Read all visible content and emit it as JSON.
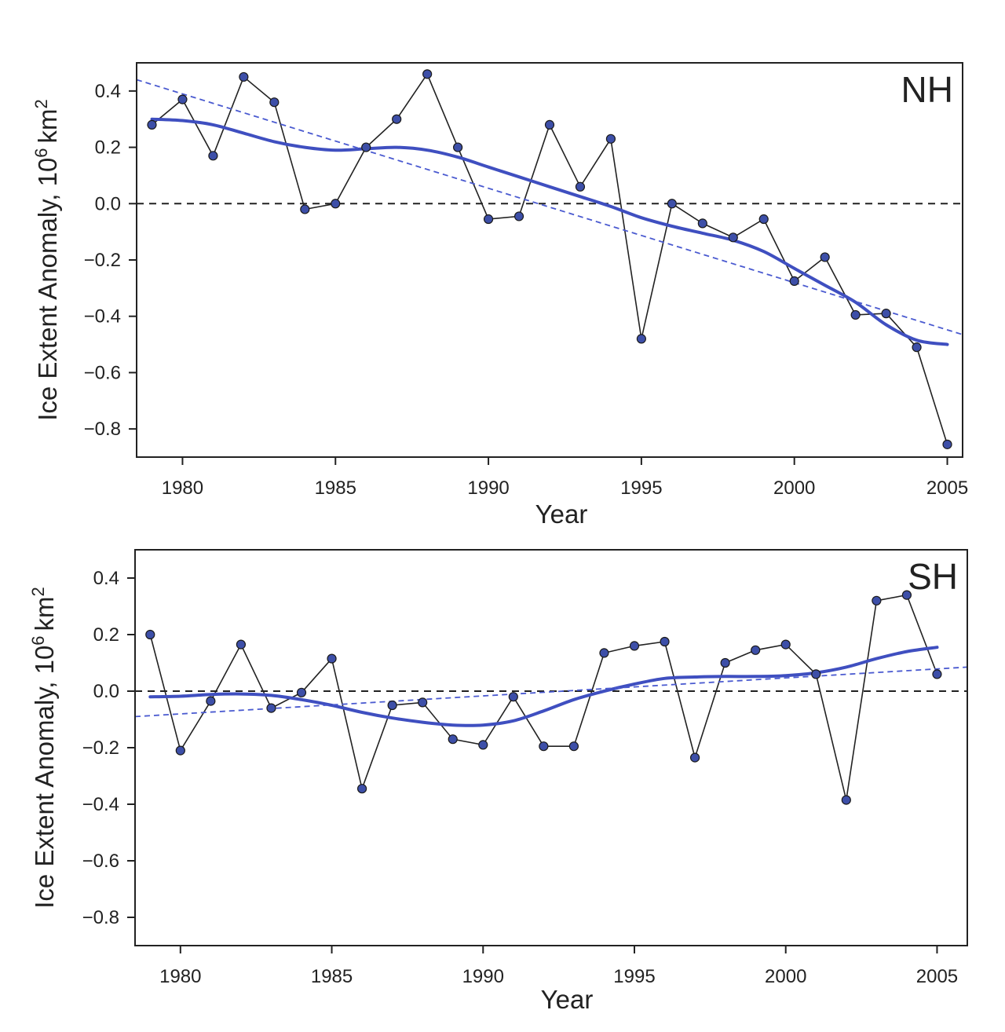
{
  "chart_data": [
    {
      "type": "line",
      "panel_label": "NH",
      "xlabel": "Year",
      "ylabel": "Ice Extent Anomaly, 10",
      "ylabel_exponent": "6",
      "ylabel_unit": "km",
      "ylabel_unit_exponent": "2",
      "xlim": [
        1978.5,
        2005.5
      ],
      "ylim": [
        -0.9,
        0.5
      ],
      "xticks": [
        1980,
        1985,
        1990,
        1995,
        2000,
        2005
      ],
      "yticks": [
        0.4,
        0.2,
        0.0,
        -0.2,
        -0.4,
        -0.6,
        -0.8
      ],
      "ytick_labels": [
        "0.4",
        "0.2",
        "0.0",
        "−0.2",
        "−0.4",
        "−0.6",
        "−0.8"
      ],
      "zero_line": true,
      "grid": false,
      "series": [
        {
          "style": "markers-line",
          "color": "#222222",
          "marker_color": "#3d4fa8",
          "x": [
            1979,
            1980,
            1981,
            1982,
            1983,
            1984,
            1985,
            1986,
            1987,
            1988,
            1989,
            1990,
            1991,
            1992,
            1993,
            1994,
            1995,
            1996,
            1997,
            1998,
            1999,
            2000,
            2001,
            2002,
            2003,
            2004,
            2005
          ],
          "y": [
            0.28,
            0.37,
            0.17,
            0.45,
            0.36,
            -0.02,
            0.0,
            0.2,
            0.3,
            0.46,
            0.2,
            -0.055,
            -0.045,
            0.28,
            0.06,
            0.23,
            -0.48,
            0.0,
            -0.07,
            -0.12,
            -0.055,
            -0.275,
            -0.19,
            -0.395,
            -0.39,
            -0.51,
            -0.855
          ]
        },
        {
          "style": "smooth",
          "color": "#3f4fc0",
          "x": [
            1979,
            1980,
            1981,
            1982,
            1983,
            1984,
            1985,
            1986,
            1987,
            1988,
            1989,
            1990,
            1991,
            1992,
            1993,
            1994,
            1995,
            1996,
            1997,
            1998,
            1999,
            2000,
            2001,
            2002,
            2003,
            2004,
            2005
          ],
          "y": [
            0.3,
            0.295,
            0.28,
            0.25,
            0.22,
            0.2,
            0.19,
            0.195,
            0.2,
            0.19,
            0.165,
            0.13,
            0.095,
            0.06,
            0.025,
            -0.01,
            -0.05,
            -0.08,
            -0.105,
            -0.13,
            -0.17,
            -0.23,
            -0.29,
            -0.35,
            -0.43,
            -0.485,
            -0.5
          ]
        },
        {
          "style": "dashed",
          "color": "#4a5ad0",
          "x": [
            1978.5,
            2005.5
          ],
          "y": [
            0.44,
            -0.465
          ]
        }
      ]
    },
    {
      "type": "line",
      "panel_label": "SH",
      "xlabel": "Year",
      "ylabel": "Ice Extent Anomaly, 10",
      "ylabel_exponent": "6",
      "ylabel_unit": "km",
      "ylabel_unit_exponent": "2",
      "xlim": [
        1978.5,
        2006.0
      ],
      "ylim": [
        -0.9,
        0.5
      ],
      "xticks": [
        1980,
        1985,
        1990,
        1995,
        2000,
        2005
      ],
      "yticks": [
        0.4,
        0.2,
        0.0,
        -0.2,
        -0.4,
        -0.6,
        -0.8
      ],
      "ytick_labels": [
        "0.4",
        "0.2",
        "0.0",
        "−0.2",
        "−0.4",
        "−0.6",
        "−0.8"
      ],
      "zero_line": true,
      "grid": false,
      "series": [
        {
          "style": "markers-line",
          "color": "#222222",
          "marker_color": "#3d4fa8",
          "x": [
            1979,
            1980,
            1981,
            1982,
            1983,
            1984,
            1985,
            1986,
            1987,
            1988,
            1989,
            1990,
            1991,
            1992,
            1993,
            1994,
            1995,
            1996,
            1997,
            1998,
            1999,
            2000,
            2001,
            2002,
            2003,
            2004,
            2005
          ],
          "y": [
            0.2,
            -0.21,
            -0.035,
            0.165,
            -0.06,
            -0.005,
            0.115,
            -0.345,
            -0.05,
            -0.04,
            -0.17,
            -0.19,
            -0.02,
            -0.195,
            -0.195,
            0.135,
            0.16,
            0.175,
            -0.235,
            0.1,
            0.145,
            0.165,
            0.06,
            -0.385,
            0.32,
            0.34,
            0.06
          ]
        },
        {
          "style": "smooth",
          "color": "#3f4fc0",
          "x": [
            1979,
            1980,
            1981,
            1982,
            1983,
            1984,
            1985,
            1986,
            1987,
            1988,
            1989,
            1990,
            1991,
            1992,
            1993,
            1994,
            1995,
            1996,
            1997,
            1998,
            1999,
            2000,
            2001,
            2002,
            2003,
            2004,
            2005
          ],
          "y": [
            -0.02,
            -0.018,
            -0.012,
            -0.01,
            -0.015,
            -0.03,
            -0.05,
            -0.075,
            -0.095,
            -0.11,
            -0.12,
            -0.12,
            -0.105,
            -0.07,
            -0.03,
            0.0,
            0.025,
            0.045,
            0.05,
            0.052,
            0.052,
            0.055,
            0.065,
            0.085,
            0.115,
            0.14,
            0.155
          ]
        },
        {
          "style": "dashed",
          "color": "#4a5ad0",
          "x": [
            1978.5,
            2006.0
          ],
          "y": [
            -0.09,
            0.085
          ]
        }
      ]
    }
  ]
}
